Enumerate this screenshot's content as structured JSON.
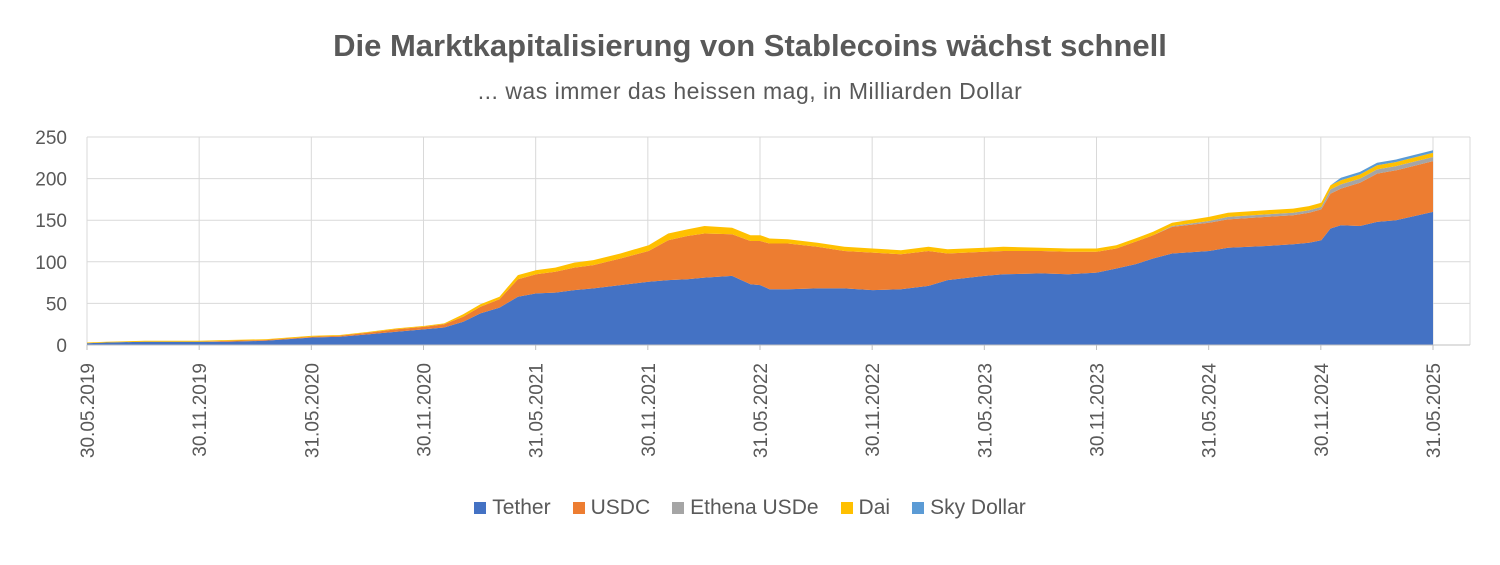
{
  "header": {
    "title": "Die Marktkapitalisierung von Stablecoins wächst schnell",
    "subtitle": "... was immer das heissen mag, in Milliarden Dollar"
  },
  "chart_data": {
    "type": "area",
    "stacked": true,
    "title": "Die Marktkapitalisierung von Stablecoins wächst schnell",
    "subtitle": "... was immer das heissen mag, in Milliarden Dollar",
    "ylim": [
      0,
      250
    ],
    "yticks": [
      0,
      50,
      100,
      150,
      200,
      250
    ],
    "xlim": [
      "2019-05-30",
      "2025-05-31"
    ],
    "xticks": [
      "30.05.2019",
      "30.11.2019",
      "31.05.2020",
      "30.11.2020",
      "31.05.2021",
      "30.11.2021",
      "31.05.2022",
      "30.11.2022",
      "31.05.2023",
      "30.11.2023",
      "31.05.2024",
      "30.11.2024",
      "31.05.2025"
    ],
    "grid": true,
    "legend_position": "bottom",
    "x": [
      "2019-05-30",
      "2019-07-01",
      "2019-09-01",
      "2019-11-30",
      "2020-01-15",
      "2020-03-15",
      "2020-05-31",
      "2020-07-15",
      "2020-09-01",
      "2020-10-15",
      "2020-11-30",
      "2021-01-01",
      "2021-02-01",
      "2021-03-01",
      "2021-04-01",
      "2021-05-01",
      "2021-05-31",
      "2021-07-01",
      "2021-08-01",
      "2021-09-01",
      "2021-10-15",
      "2021-11-30",
      "2022-01-01",
      "2022-02-01",
      "2022-03-01",
      "2022-04-15",
      "2022-05-15",
      "2022-05-31",
      "2022-06-15",
      "2022-07-15",
      "2022-09-01",
      "2022-10-15",
      "2022-11-30",
      "2023-01-15",
      "2023-03-01",
      "2023-04-01",
      "2023-05-31",
      "2023-07-01",
      "2023-09-01",
      "2023-10-15",
      "2023-11-30",
      "2024-01-01",
      "2024-02-01",
      "2024-03-01",
      "2024-04-01",
      "2024-05-31",
      "2024-07-01",
      "2024-09-01",
      "2024-10-15",
      "2024-11-10",
      "2024-11-30",
      "2024-12-15",
      "2025-01-01",
      "2025-02-01",
      "2025-03-01",
      "2025-04-01",
      "2025-05-31"
    ],
    "series": [
      {
        "name": "Tether",
        "color": "#4472C4",
        "values": [
          2,
          3,
          4,
          4,
          4,
          5,
          9,
          10,
          13,
          16,
          19,
          21,
          28,
          38,
          45,
          58,
          62,
          63,
          66,
          68,
          72,
          76,
          78,
          79,
          81,
          83,
          73,
          72,
          67,
          67,
          68,
          68,
          66,
          67,
          71,
          78,
          83,
          85,
          86,
          85,
          87,
          92,
          97,
          104,
          110,
          113,
          117,
          119,
          121,
          123,
          126,
          140,
          144,
          143,
          148,
          150,
          160
        ]
      },
      {
        "name": "USDC",
        "color": "#ED7D31",
        "values": [
          0,
          0,
          0,
          0,
          1,
          1,
          1,
          1,
          2,
          3,
          3,
          4,
          6,
          8,
          10,
          21,
          23,
          25,
          27,
          28,
          32,
          37,
          48,
          52,
          53,
          50,
          52,
          53,
          55,
          55,
          50,
          45,
          45,
          42,
          42,
          32,
          29,
          28,
          27,
          27,
          25,
          24,
          27,
          28,
          32,
          34,
          34,
          35,
          35,
          36,
          37,
          42,
          44,
          52,
          58,
          60,
          61
        ]
      },
      {
        "name": "Ethena USDe",
        "color": "#A5A5A5",
        "values": [
          0,
          0,
          0,
          0,
          0,
          0,
          0,
          0,
          0,
          0,
          0,
          0,
          0,
          0,
          0,
          0,
          0,
          0,
          0,
          0,
          0,
          0,
          0,
          0,
          0,
          0,
          0,
          0,
          0,
          0,
          0,
          0,
          0,
          0,
          0,
          0,
          0,
          0,
          0,
          0,
          0,
          0,
          0,
          0,
          1,
          2,
          3,
          3,
          3,
          3,
          3,
          5,
          5,
          5,
          5,
          5,
          5
        ]
      },
      {
        "name": "Dai",
        "color": "#FFC000",
        "values": [
          1,
          1,
          1,
          1,
          1,
          1,
          1,
          1,
          1,
          1,
          1,
          1,
          3,
          3,
          3,
          5,
          5,
          5,
          6,
          6,
          6,
          7,
          8,
          8,
          9,
          8,
          7,
          7,
          6,
          5,
          5,
          5,
          5,
          5,
          5,
          5,
          5,
          5,
          4,
          4,
          4,
          4,
          4,
          4,
          4,
          5,
          5,
          5,
          5,
          5,
          5,
          5,
          5,
          5,
          5,
          5,
          5
        ]
      },
      {
        "name": "Sky Dollar",
        "color": "#5B9BD5",
        "values": [
          0,
          0,
          0,
          0,
          0,
          0,
          0,
          0,
          0,
          0,
          0,
          0,
          0,
          0,
          0,
          0,
          0,
          0,
          0,
          0,
          0,
          0,
          0,
          0,
          0,
          0,
          0,
          0,
          0,
          0,
          0,
          0,
          0,
          0,
          0,
          0,
          0,
          0,
          0,
          0,
          0,
          0,
          0,
          0,
          0,
          0,
          0,
          0,
          0,
          0,
          0,
          0,
          3,
          3,
          3,
          3,
          3
        ]
      }
    ]
  }
}
